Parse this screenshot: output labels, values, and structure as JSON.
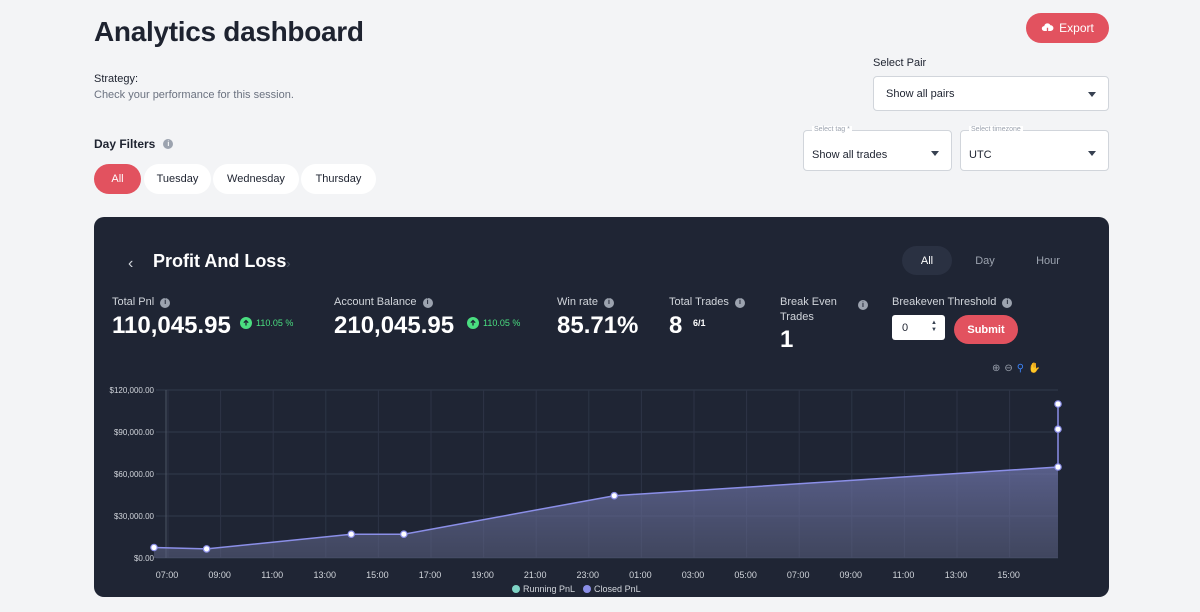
{
  "page": {
    "title": "Analytics dashboard",
    "export_label": "Export",
    "strategy_label": "Strategy:",
    "strategy_sub": "Check your performance for this session."
  },
  "select_pair": {
    "label": "Select Pair",
    "value": "Show all pairs"
  },
  "select_tag": {
    "label": "Select tag *",
    "value": "Show all trades"
  },
  "select_timezone": {
    "label": "Select timezone",
    "value": "UTC"
  },
  "day_filters": {
    "label": "Day Filters",
    "options": [
      "All",
      "Tuesday",
      "Wednesday",
      "Thursday"
    ],
    "active": "All"
  },
  "panel": {
    "title": "Profit And Loss",
    "segments": [
      "All",
      "Day",
      "Hour"
    ],
    "active_segment": "All",
    "stats": {
      "total_pnl": {
        "label": "Total Pnl",
        "value": "110,045.95",
        "change": "110.05 %"
      },
      "account_balance": {
        "label": "Account Balance",
        "value": "210,045.95",
        "change": "110.05 %"
      },
      "win_rate": {
        "label": "Win rate",
        "value": "85.71%"
      },
      "total_trades": {
        "label": "Total Trades",
        "value": "8",
        "sub": "6/1"
      },
      "break_even": {
        "label_line1": "Break Even",
        "label_line2": "Trades",
        "value": "1"
      },
      "breakeven_threshold": {
        "label": "Breakeven Threshold",
        "input_value": "0",
        "submit_label": "Submit"
      }
    }
  },
  "colors": {
    "accent": "#e2525f",
    "panel_bg": "#1f2534",
    "positive": "#4ade80",
    "closed_pnl": "#8b8fe8",
    "running_pnl": "#7fd4c6"
  },
  "chart_data": {
    "type": "area",
    "y_ticks": [
      "$0.00",
      "$30,000.00",
      "$60,000.00",
      "$90,000.00",
      "$120,000.00"
    ],
    "ylim": [
      0,
      120000
    ],
    "x_ticks": [
      "07:00",
      "09:00",
      "11:00",
      "13:00",
      "15:00",
      "17:00",
      "19:00",
      "21:00",
      "23:00",
      "01:00",
      "03:00",
      "05:00",
      "07:00",
      "09:00",
      "11:00",
      "13:00",
      "15:00"
    ],
    "grid": true,
    "legend_position": "bottom",
    "series": [
      {
        "name": "Running PnL",
        "values": []
      },
      {
        "name": "Closed PnL",
        "points": [
          {
            "x": "07:00",
            "y": 7500
          },
          {
            "x": "09:00",
            "y": 6500
          },
          {
            "x": "14:30",
            "y": 17000
          },
          {
            "x": "16:30",
            "y": 17000
          },
          {
            "x": "00:30",
            "y": 44500
          },
          {
            "x": "end",
            "y": 65000
          },
          {
            "x": "end",
            "y": 92000
          },
          {
            "x": "end",
            "y": 110000
          }
        ]
      }
    ]
  }
}
